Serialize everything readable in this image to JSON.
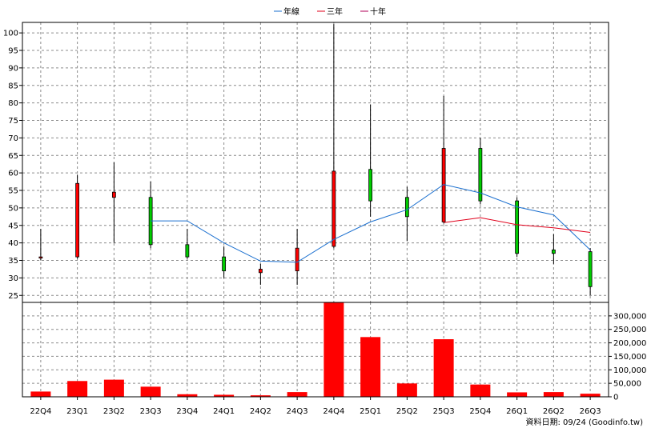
{
  "chart_data": [
    {
      "type": "candlestick",
      "title": "",
      "legend": {
        "placement": "top-center",
        "items": [
          {
            "name": "年線",
            "color": "#1a6fcf"
          },
          {
            "name": "三年",
            "color": "#e0001b"
          },
          {
            "name": "十年",
            "color": "#b0005a"
          }
        ]
      },
      "categories": [
        "22Q4",
        "23Q1",
        "23Q2",
        "23Q3",
        "23Q4",
        "24Q1",
        "24Q2",
        "24Q3",
        "24Q4",
        "25Q1",
        "25Q2",
        "25Q3",
        "25Q4",
        "26Q1",
        "26Q2",
        "26Q3"
      ],
      "ylim": [
        23,
        103
      ],
      "yticks": [
        25,
        30,
        35,
        40,
        45,
        50,
        55,
        60,
        65,
        70,
        75,
        80,
        85,
        90,
        95,
        100
      ],
      "grid": true,
      "up_color": "#ff0000",
      "down_color": "#00cc00",
      "ohlc": [
        {
          "open": 36.0,
          "high": 44.0,
          "low": 35.0,
          "close": 36.0
        },
        {
          "open": 36.0,
          "high": 59.5,
          "low": 35.5,
          "close": 57.0
        },
        {
          "open": 53.0,
          "high": 63.0,
          "low": 40.0,
          "close": 54.5
        },
        {
          "open": 53.0,
          "high": 57.5,
          "low": 38.5,
          "close": 39.5
        },
        {
          "open": 39.5,
          "high": 44.0,
          "low": 35.5,
          "close": 36.0
        },
        {
          "open": 36.0,
          "high": 39.0,
          "low": 30.0,
          "close": 32.0
        },
        {
          "open": 31.5,
          "high": 34.0,
          "low": 28.0,
          "close": 32.5
        },
        {
          "open": 32.0,
          "high": 44.0,
          "low": 28.0,
          "close": 38.5
        },
        {
          "open": 39.0,
          "high": 102.5,
          "low": 38.5,
          "close": 60.5
        },
        {
          "open": 61.0,
          "high": 79.5,
          "low": 47.5,
          "close": 52.0
        },
        {
          "open": 53.0,
          "high": 56.0,
          "low": 40.5,
          "close": 47.5
        },
        {
          "open": 46.0,
          "high": 82.0,
          "low": 45.5,
          "close": 67.0
        },
        {
          "open": 67.0,
          "high": 70.0,
          "low": 51.0,
          "close": 52.0
        },
        {
          "open": 52.0,
          "high": 53.0,
          "low": 36.0,
          "close": 37.0
        },
        {
          "open": 38.0,
          "high": 42.5,
          "low": 34.0,
          "close": 37.0
        },
        {
          "open": 37.5,
          "high": 38.5,
          "low": 25.0,
          "close": 27.5
        }
      ],
      "series": [
        {
          "name": "年線",
          "color": "#1a6fcf",
          "values": [
            null,
            null,
            null,
            46.3,
            46.3,
            40.0,
            34.8,
            34.5,
            41.0,
            46.0,
            49.5,
            56.7,
            54.3,
            50.3,
            48.0,
            38.0
          ]
        },
        {
          "name": "三年",
          "color": "#e0001b",
          "values": [
            null,
            null,
            null,
            null,
            null,
            null,
            null,
            null,
            null,
            null,
            null,
            45.8,
            47.2,
            45.2,
            44.3,
            43.0
          ]
        },
        {
          "name": "十年",
          "color": "#b0005a",
          "values": [
            null,
            null,
            null,
            null,
            null,
            null,
            null,
            null,
            null,
            null,
            null,
            null,
            null,
            null,
            null,
            null
          ]
        }
      ]
    },
    {
      "type": "bar",
      "categories": [
        "22Q4",
        "23Q1",
        "23Q2",
        "23Q3",
        "23Q4",
        "24Q1",
        "24Q2",
        "24Q3",
        "24Q4",
        "25Q1",
        "25Q2",
        "25Q3",
        "25Q4",
        "26Q1",
        "26Q2",
        "26Q3"
      ],
      "values": [
        18000,
        57000,
        62000,
        36000,
        8000,
        6000,
        4000,
        16000,
        355000,
        220000,
        48000,
        212000,
        44000,
        15000,
        16000,
        10000
      ],
      "ylim": [
        0,
        350000
      ],
      "yticks": [
        0,
        50000,
        100000,
        150000,
        200000,
        250000,
        300000
      ],
      "ytick_labels": [
        "0",
        "50,000",
        "100,000",
        "150,000",
        "200,000",
        "250,000",
        "300,000"
      ],
      "bar_color": "#ff0000",
      "grid": true
    }
  ],
  "footer": {
    "source": "資料日期: 09/24  (Goodinfo.tw)"
  }
}
